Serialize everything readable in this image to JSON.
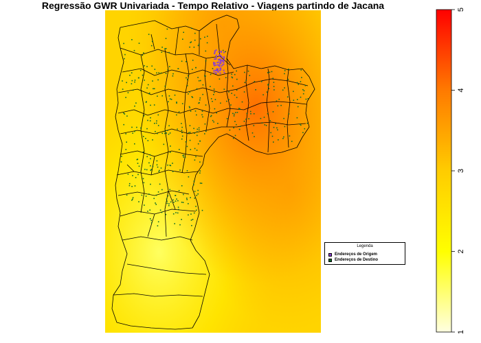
{
  "title": "Regressão GWR Univariada - Tempo Relativo - Viagens partindo de Jacana",
  "legend": {
    "title": "Legenda",
    "items": [
      {
        "label": "Endereços de Origem",
        "color": "#8a3fcf"
      },
      {
        "label": "Endereços de Destino",
        "color": "#0a6b2a"
      }
    ]
  },
  "colorbar": {
    "min": 1,
    "max": 5,
    "ticks": [
      "1",
      "2",
      "3",
      "4",
      "5"
    ],
    "gradient": [
      "#ffffe0",
      "#ffff00",
      "#ffd000",
      "#ff9900",
      "#ff5000",
      "#ff0000"
    ]
  },
  "surface_colors": {
    "low": "#ffff40",
    "mid": "#ffcc00",
    "high": "#ff9900",
    "peak": "#ff6a00"
  }
}
